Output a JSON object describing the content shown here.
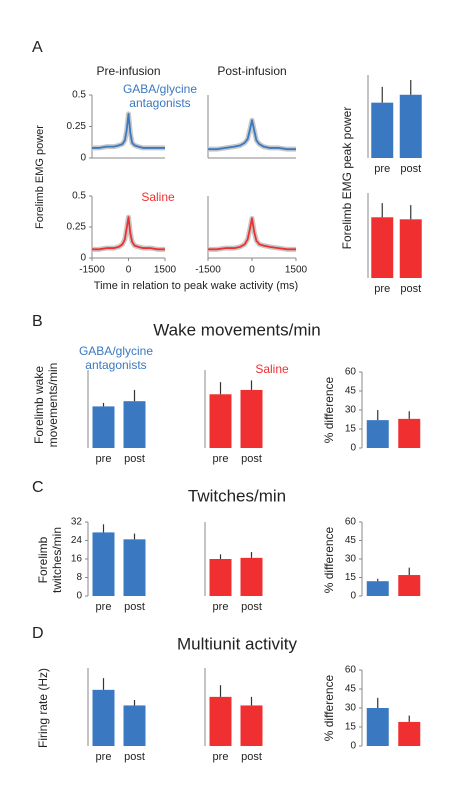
{
  "figure": {
    "panel_labels": [
      "A",
      "B",
      "C",
      "D"
    ],
    "section_titles": [
      "Wake movements/min",
      "Twitches/min",
      "Multiunit activity"
    ],
    "a_ylabel": "Forelimb EMG power",
    "a_xlabel": "Time in relation to peak wake activity (ms)"
  },
  "chart_data": [
    {
      "type": "line",
      "title": "Pre-infusion",
      "annotation": [
        "GABA/glycine",
        "antagonists"
      ],
      "color": "#3a78c1",
      "x": [
        -1500,
        -1200,
        -900,
        -600,
        -400,
        -250,
        -150,
        -75,
        0,
        75,
        150,
        250,
        400,
        600,
        900,
        1200,
        1500
      ],
      "values": [
        0.08,
        0.08,
        0.09,
        0.09,
        0.1,
        0.11,
        0.14,
        0.22,
        0.35,
        0.2,
        0.12,
        0.1,
        0.09,
        0.08,
        0.08,
        0.08,
        0.08
      ],
      "xlim": [
        -1500,
        1500
      ],
      "ylim": [
        0,
        0.5
      ],
      "yticks": [
        0,
        0.25,
        0.5
      ]
    },
    {
      "type": "line",
      "title": "Post-infusion",
      "color": "#3a78c1",
      "x": [
        -1500,
        -1200,
        -900,
        -600,
        -400,
        -250,
        -150,
        -75,
        0,
        75,
        150,
        250,
        400,
        600,
        900,
        1200,
        1500
      ],
      "values": [
        0.07,
        0.07,
        0.08,
        0.09,
        0.1,
        0.12,
        0.15,
        0.22,
        0.3,
        0.22,
        0.14,
        0.11,
        0.09,
        0.08,
        0.08,
        0.07,
        0.07
      ],
      "xlim": [
        -1500,
        1500
      ],
      "ylim": [
        0,
        0.5
      ]
    },
    {
      "type": "line",
      "annotation": [
        "Saline"
      ],
      "color": "#f03030",
      "x": [
        -1500,
        -1200,
        -900,
        -600,
        -400,
        -250,
        -150,
        -75,
        0,
        75,
        150,
        250,
        400,
        600,
        900,
        1200,
        1500
      ],
      "values": [
        0.07,
        0.07,
        0.08,
        0.08,
        0.09,
        0.11,
        0.15,
        0.24,
        0.33,
        0.2,
        0.13,
        0.1,
        0.09,
        0.08,
        0.08,
        0.07,
        0.07
      ],
      "xlim": [
        -1500,
        1500
      ],
      "ylim": [
        0,
        0.5
      ],
      "yticks": [
        0,
        0.25,
        0.5
      ],
      "xticks": [
        -1500,
        0,
        1500
      ]
    },
    {
      "type": "line",
      "color": "#f03030",
      "x": [
        -1500,
        -1200,
        -900,
        -600,
        -400,
        -250,
        -150,
        -75,
        0,
        75,
        150,
        250,
        400,
        600,
        900,
        1200,
        1500
      ],
      "values": [
        0.07,
        0.07,
        0.08,
        0.08,
        0.09,
        0.11,
        0.15,
        0.23,
        0.32,
        0.21,
        0.14,
        0.11,
        0.1,
        0.09,
        0.08,
        0.07,
        0.07
      ],
      "xlim": [
        -1500,
        1500
      ],
      "ylim": [
        0,
        0.5
      ],
      "xticks": [
        -1500,
        0,
        1500
      ]
    },
    {
      "type": "bar",
      "ylabel": [
        "Forelimb EMG peak power"
      ],
      "categories": [
        "pre",
        "post"
      ],
      "values": [
        0.28,
        0.32
      ],
      "errors": [
        0.08,
        0.075
      ],
      "colors": [
        "#3a78c1",
        "#3a78c1"
      ],
      "ylim": [
        0,
        0.42
      ]
    },
    {
      "type": "bar",
      "categories": [
        "pre",
        "post"
      ],
      "values": [
        0.3,
        0.29
      ],
      "errors": [
        0.07,
        0.07
      ],
      "colors": [
        "#f03030",
        "#f03030"
      ],
      "ylim": [
        0,
        0.42
      ]
    },
    {
      "type": "bar",
      "annotation": [
        "GABA/glycine",
        "antagonists"
      ],
      "ylabel": [
        "Forelimb wake",
        "movements/min"
      ],
      "categories": [
        "pre",
        "post"
      ],
      "values": [
        2.4,
        2.7
      ],
      "errors": [
        0.2,
        0.65
      ],
      "colors": [
        "#3a78c1",
        "#3a78c1"
      ],
      "ylim": [
        0,
        4.5
      ]
    },
    {
      "type": "bar",
      "annotation": [
        "Saline"
      ],
      "categories": [
        "pre",
        "post"
      ],
      "values": [
        3.1,
        3.35
      ],
      "errors": [
        0.7,
        0.55
      ],
      "colors": [
        "#f03030",
        "#f03030"
      ],
      "ylim": [
        0,
        4.5
      ]
    },
    {
      "type": "bar",
      "ylabel": [
        "% difference"
      ],
      "categories": [
        null,
        null
      ],
      "values": [
        22,
        23
      ],
      "errors": [
        8,
        6
      ],
      "colors": [
        "#3a78c1",
        "#f03030"
      ],
      "ylim": [
        0,
        60
      ],
      "yticks": [
        0,
        15,
        30,
        45,
        60
      ]
    },
    {
      "type": "bar",
      "ylabel": [
        "Forelimb",
        "twitches/min"
      ],
      "categories": [
        "pre",
        "post"
      ],
      "values": [
        27.5,
        24.5
      ],
      "errors": [
        3.5,
        2.5
      ],
      "colors": [
        "#3a78c1",
        "#3a78c1"
      ],
      "ylim": [
        0,
        32
      ],
      "yticks": [
        0,
        8,
        16,
        24,
        32
      ]
    },
    {
      "type": "bar",
      "categories": [
        "pre",
        "post"
      ],
      "values": [
        16,
        16.5
      ],
      "errors": [
        2,
        2.5
      ],
      "colors": [
        "#f03030",
        "#f03030"
      ],
      "ylim": [
        0,
        32
      ]
    },
    {
      "type": "bar",
      "ylabel": [
        "% difference"
      ],
      "categories": [
        null,
        null
      ],
      "values": [
        12,
        17
      ],
      "errors": [
        2,
        6
      ],
      "colors": [
        "#3a78c1",
        "#f03030"
      ],
      "ylim": [
        0,
        60
      ],
      "yticks": [
        0,
        15,
        30,
        45,
        60
      ]
    },
    {
      "type": "bar",
      "ylabel": [
        "Firing rate (Hz)"
      ],
      "categories": [
        "pre",
        "post"
      ],
      "values": [
        7.2,
        5.2
      ],
      "errors": [
        1.5,
        0.7
      ],
      "colors": [
        "#3a78c1",
        "#3a78c1"
      ],
      "ylim": [
        0,
        10
      ]
    },
    {
      "type": "bar",
      "categories": [
        "pre",
        "post"
      ],
      "values": [
        6.3,
        5.2
      ],
      "errors": [
        1.5,
        1.1
      ],
      "colors": [
        "#f03030",
        "#f03030"
      ],
      "ylim": [
        0,
        10
      ]
    },
    {
      "type": "bar",
      "ylabel": [
        "% difference"
      ],
      "categories": [
        null,
        null
      ],
      "values": [
        30,
        19
      ],
      "errors": [
        8,
        5
      ],
      "colors": [
        "#3a78c1",
        "#f03030"
      ],
      "ylim": [
        0,
        60
      ],
      "yticks": [
        0,
        15,
        30,
        45,
        60
      ]
    }
  ]
}
